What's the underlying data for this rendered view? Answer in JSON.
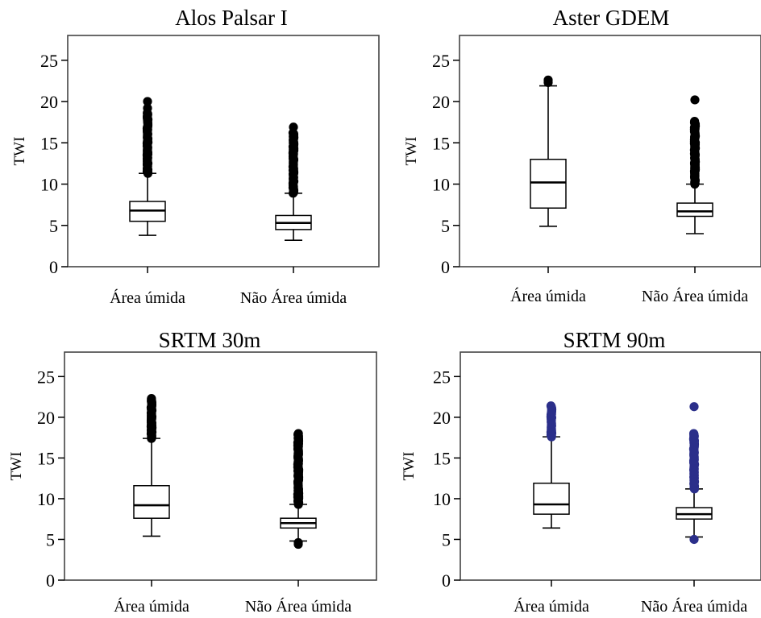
{
  "chart_data": [
    {
      "type": "box",
      "title": "Alos Palsar I",
      "ylabel": "TWI",
      "ylim": [
        0,
        28
      ],
      "yticks": [
        "0",
        "5",
        "10",
        "15",
        "20",
        "25"
      ],
      "categories": [
        "Área úmida",
        "Não Área úmida"
      ],
      "boxes": [
        {
          "min": 3.8,
          "q1": 5.5,
          "median": 6.8,
          "q3": 7.9,
          "max": 11.3,
          "outliers_range": [
            11.3,
            18.6
          ],
          "outliers_top": [
            19.2,
            20.0
          ]
        },
        {
          "min": 3.2,
          "q1": 4.5,
          "median": 5.3,
          "q3": 6.2,
          "max": 8.9,
          "outliers_range": [
            8.9,
            16.2
          ],
          "outliers_top": [
            16.9
          ]
        }
      ]
    },
    {
      "type": "box",
      "title": "Aster GDEM",
      "ylabel": "TWI",
      "ylim": [
        0,
        28
      ],
      "yticks": [
        "0",
        "5",
        "10",
        "15",
        "20",
        "25"
      ],
      "categories": [
        "Área úmida",
        "Não Área úmida"
      ],
      "boxes": [
        {
          "min": 4.9,
          "q1": 7.1,
          "median": 10.2,
          "q3": 13.0,
          "max": 21.9,
          "outliers_range": [],
          "outliers_top": [
            22.3,
            22.6
          ]
        },
        {
          "min": 4.0,
          "q1": 6.1,
          "median": 6.7,
          "q3": 7.7,
          "max": 10.0,
          "outliers_range": [
            10.0,
            17.6
          ],
          "outliers_top": [
            20.2
          ]
        }
      ]
    },
    {
      "type": "box",
      "title": "SRTM 30m",
      "ylabel": "TWI",
      "ylim": [
        0,
        28
      ],
      "yticks": [
        "0",
        "5",
        "10",
        "15",
        "20",
        "25"
      ],
      "categories": [
        "Área úmida",
        "Não Área úmida"
      ],
      "boxes": [
        {
          "min": 5.4,
          "q1": 7.6,
          "median": 9.2,
          "q3": 11.6,
          "max": 17.4,
          "outliers_range": [
            17.4,
            22.3
          ],
          "outliers_top": []
        },
        {
          "min": 4.8,
          "q1": 6.4,
          "median": 7.0,
          "q3": 7.6,
          "max": 9.3,
          "outliers_range": [
            9.3,
            18.0
          ],
          "outliers_bottom": [
            4.4,
            4.6
          ]
        }
      ]
    },
    {
      "type": "box",
      "title": "SRTM 90m",
      "ylabel": "TWI",
      "ylim": [
        0,
        28
      ],
      "yticks": [
        "0",
        "5",
        "10",
        "15",
        "20",
        "25"
      ],
      "categories": [
        "Área úmida",
        "Não Área úmida"
      ],
      "outlier_color": "#2b2f8a",
      "boxes": [
        {
          "min": 6.4,
          "q1": 8.1,
          "median": 9.3,
          "q3": 11.9,
          "max": 17.6,
          "outliers_range": [
            17.6,
            21.4
          ],
          "outliers_top": []
        },
        {
          "min": 5.3,
          "q1": 7.5,
          "median": 8.1,
          "q3": 8.9,
          "max": 11.2,
          "outliers_range": [
            11.2,
            18.0
          ],
          "outliers_top": [
            21.3
          ],
          "outliers_bottom": [
            5.0
          ]
        }
      ]
    }
  ]
}
